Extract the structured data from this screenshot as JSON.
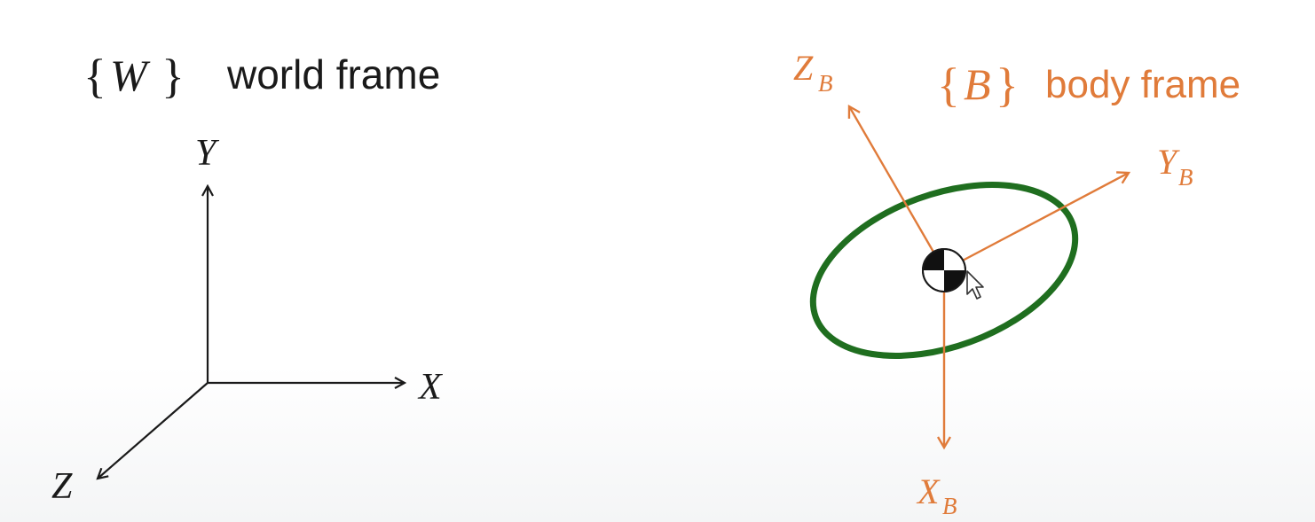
{
  "world": {
    "frame_symbol": "W",
    "caption": "world frame",
    "axes": {
      "x": "X",
      "y": "Y",
      "z": "Z"
    },
    "color": "#1a1a1a"
  },
  "body": {
    "frame_symbol": "B",
    "caption": "body frame",
    "axes": {
      "x": "X",
      "y": "Y",
      "z": "Z",
      "subscript": "B"
    },
    "axis_color": "#e07b3a",
    "ellipse_color": "#1f6e1f"
  },
  "cursor": {
    "icon": "mouse-pointer-icon"
  },
  "marker": {
    "icon": "center-of-mass-icon"
  }
}
